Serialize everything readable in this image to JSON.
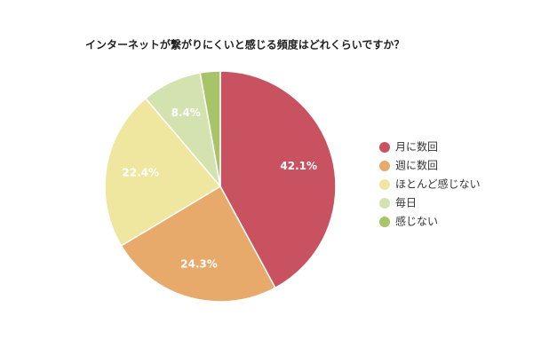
{
  "chart_data": {
    "type": "pie",
    "title": "インターネットが繋がりにくいと感じる頻度はどれくらいですか？",
    "categories": [
      "月に数回",
      "週に数回",
      "ほとんど感じない",
      "毎日",
      "感じない"
    ],
    "values": [
      42.1,
      24.3,
      22.4,
      8.4,
      2.8
    ],
    "value_labels": [
      "42.1%",
      "24.3%",
      "22.4%",
      "8.4%",
      null
    ],
    "colors": [
      "#c95260",
      "#e8aa6b",
      "#efe6a0",
      "#d4e2b0",
      "#a8c468"
    ],
    "legend": "right"
  }
}
